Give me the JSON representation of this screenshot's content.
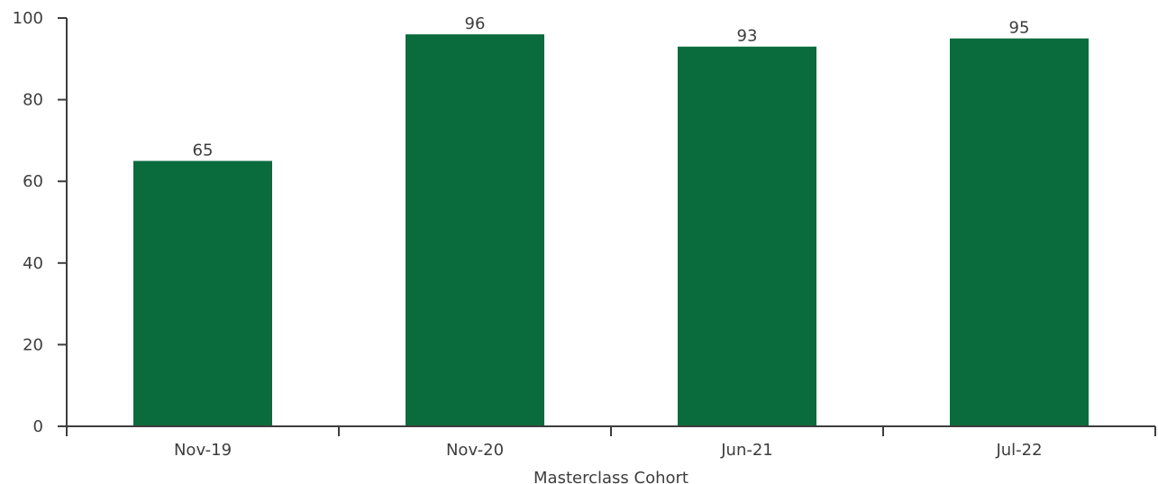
{
  "chart_data": {
    "type": "bar",
    "categories": [
      "Nov-19",
      "Nov-20",
      "Jun-21",
      "Jul-22"
    ],
    "values": [
      65,
      96,
      93,
      95
    ],
    "data_labels": [
      "65",
      "96",
      "93",
      "95"
    ],
    "title": "",
    "xlabel": "Masterclass Cohort",
    "ylabel": "",
    "ylim": [
      0,
      100
    ],
    "yticks": [
      0,
      20,
      40,
      60,
      80,
      100
    ],
    "grid": false,
    "legend": "none",
    "bar_color": "#0a6b3c"
  }
}
